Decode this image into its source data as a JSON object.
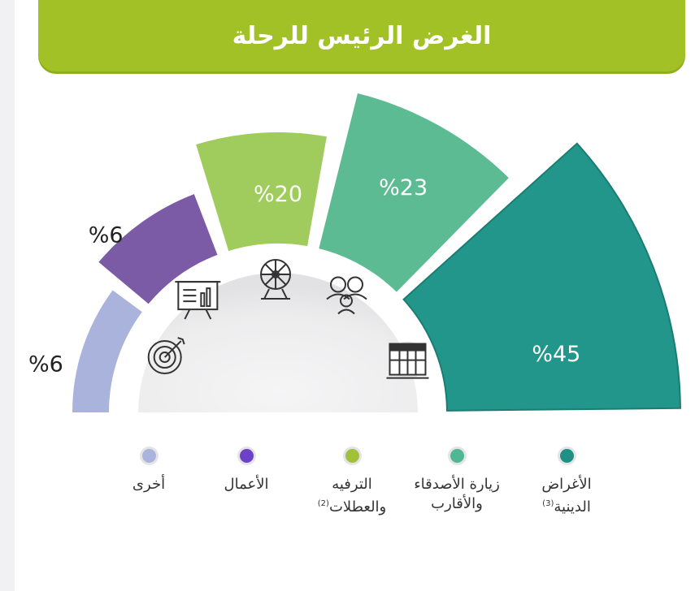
{
  "header": {
    "title": "الغرض الرئيس للرحلة"
  },
  "chart_data": {
    "type": "pie",
    "title": "الغرض الرئيس للرحلة",
    "series": [
      {
        "name": "الأغراض الدينية",
        "note": "(3)",
        "value": 45,
        "label": "%45",
        "color": "#22968a",
        "icon": "kaaba-icon"
      },
      {
        "name": "زيارة الأصدقاء والأقارب",
        "note": "",
        "value": 23,
        "label": "%23",
        "color": "#5dbb94",
        "icon": "family-icon"
      },
      {
        "name": "الترفيه والعطلات",
        "note": "(2)",
        "value": 20,
        "label": "%20",
        "color": "#a0cc5e",
        "icon": "ferris-wheel-icon"
      },
      {
        "name": "الأعمال",
        "note": "",
        "value": 6,
        "label": "%6",
        "color": "#7b5aa6",
        "icon": "presentation-board-icon"
      },
      {
        "name": "أخرى",
        "note": "",
        "value": 6,
        "label": "%6",
        "color": "#a9b3dc",
        "icon": "target-icon"
      }
    ]
  },
  "legend": {
    "items": [
      {
        "line1": "الأغراض",
        "line2": "الدينية",
        "note": "(3)",
        "color": "#1e9184"
      },
      {
        "line1": "زيارة الأصدقاء",
        "line2": "والأقارب",
        "note": "",
        "color": "#4fb893"
      },
      {
        "line1": "الترفيه",
        "line2": "والعطلات",
        "note": "(2)",
        "color": "#a1c13a"
      },
      {
        "line1": "الأعمال",
        "line2": "",
        "note": "",
        "color": "#6b42c8"
      },
      {
        "line1": "أخرى",
        "line2": "",
        "note": "",
        "color": "#a9b3dc"
      }
    ]
  }
}
